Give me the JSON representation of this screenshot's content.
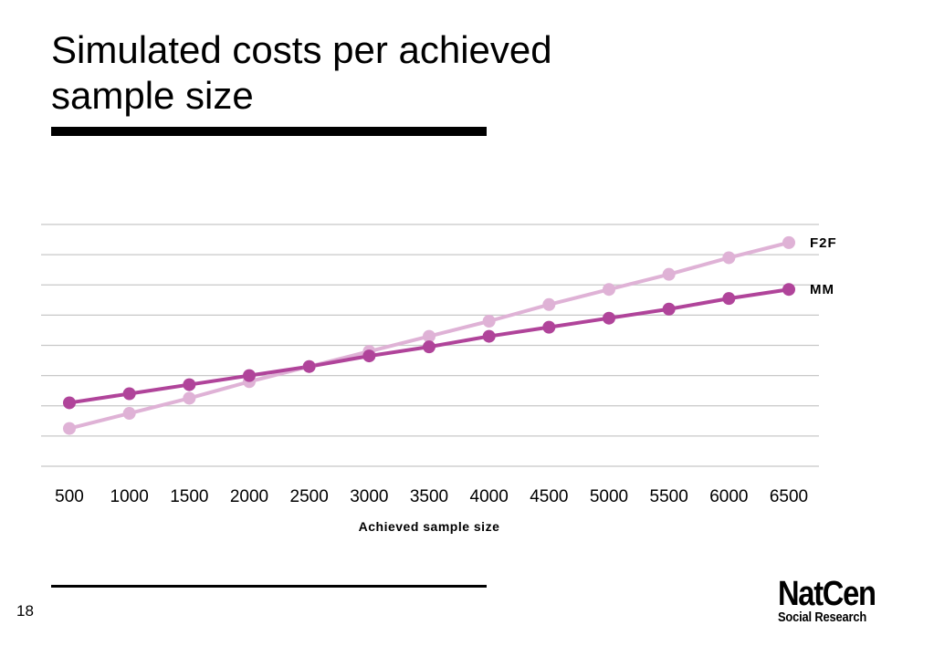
{
  "slide": {
    "title": "Simulated costs per achieved sample size",
    "page_number": "18"
  },
  "logo": {
    "name": "NatCen",
    "subtitle": "Social Research"
  },
  "colors": {
    "mm": "#b0449a",
    "f2f": "#dfb2d6",
    "grid": "#c8c8c8"
  },
  "chart_data": {
    "type": "line",
    "title": "",
    "xlabel": "Achieved sample size",
    "ylabel": "",
    "categories": [
      "500",
      "1000",
      "1500",
      "2000",
      "2500",
      "3000",
      "3500",
      "4000",
      "4500",
      "5000",
      "5500",
      "6000",
      "6500"
    ],
    "ylim": [
      0,
      8
    ],
    "grid": true,
    "legend_placement": "labels at line ends (right)",
    "series": [
      {
        "name": "F2F",
        "color": "#dfb2d6",
        "values": [
          1.25,
          1.75,
          2.25,
          2.8,
          3.3,
          3.8,
          4.3,
          4.8,
          5.35,
          5.85,
          6.35,
          6.9,
          7.4
        ]
      },
      {
        "name": "MM",
        "color": "#b0449a",
        "values": [
          2.1,
          2.4,
          2.7,
          3.0,
          3.3,
          3.65,
          3.95,
          4.3,
          4.6,
          4.9,
          5.2,
          5.55,
          5.85
        ]
      }
    ]
  }
}
